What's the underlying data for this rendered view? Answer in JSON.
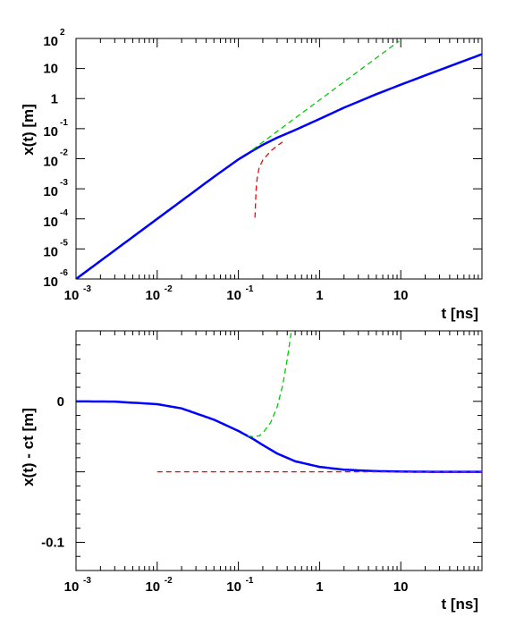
{
  "chart_data": [
    {
      "type": "line",
      "title": "",
      "xlabel": "t [ns]",
      "ylabel": "x(t)  [m]",
      "xscale": "log",
      "yscale": "log",
      "xlim": [
        0.001,
        100
      ],
      "ylim": [
        1e-06,
        100
      ],
      "grid": false,
      "legend": "none",
      "x_ticks": [
        {
          "base": "10",
          "exp": "-3"
        },
        {
          "base": "10",
          "exp": "-2"
        },
        {
          "base": "10",
          "exp": "-1"
        },
        {
          "base": "1",
          "exp": ""
        },
        {
          "base": "10",
          "exp": ""
        }
      ],
      "y_ticks": [
        {
          "base": "10",
          "exp": "2"
        },
        {
          "base": "10",
          "exp": ""
        },
        {
          "base": "1",
          "exp": ""
        },
        {
          "base": "10",
          "exp": "-1"
        },
        {
          "base": "10",
          "exp": "-2"
        },
        {
          "base": "10",
          "exp": "-3"
        },
        {
          "base": "10",
          "exp": "-4"
        },
        {
          "base": "10",
          "exp": "-5"
        },
        {
          "base": "10",
          "exp": "-6"
        }
      ],
      "series": [
        {
          "color": "#0000ff",
          "style": "solid",
          "x": [
            0.001,
            0.002,
            0.005,
            0.01,
            0.02,
            0.05,
            0.1,
            0.15,
            0.2,
            0.3,
            0.5,
            1,
            2,
            5,
            10,
            20,
            50,
            100
          ],
          "y": [
            1e-06,
            4e-06,
            2.5e-05,
            0.0001,
            0.0004,
            0.0025,
            0.0095,
            0.0185,
            0.029,
            0.05,
            0.09,
            0.21,
            0.5,
            1.4,
            2.9,
            5.9,
            14.9,
            29.9
          ]
        },
        {
          "color": "#00cc00",
          "style": "dashed",
          "x": [
            0.15,
            0.2,
            0.3,
            0.5,
            1,
            2,
            5,
            9.5
          ],
          "y": [
            0.02,
            0.036,
            0.081,
            0.225,
            0.9,
            3.6,
            22.5,
            81
          ]
        },
        {
          "color": "#ff0000",
          "style": "dashed",
          "x": [
            0.16,
            0.165,
            0.17,
            0.18,
            0.2,
            0.25,
            0.3,
            0.35
          ],
          "y": [
            0.00011,
            0.0009,
            0.0022,
            0.005,
            0.009,
            0.018,
            0.027,
            0.036
          ]
        }
      ]
    },
    {
      "type": "line",
      "title": "",
      "xlabel": "t [ns]",
      "ylabel": "x(t) - ct  [m]",
      "xscale": "log",
      "xlim": [
        0.001,
        100
      ],
      "ylim": [
        -0.12,
        0.05
      ],
      "grid": false,
      "legend": "none",
      "x_ticks": [
        {
          "base": "10",
          "exp": "-3"
        },
        {
          "base": "10",
          "exp": "-2"
        },
        {
          "base": "10",
          "exp": "-1"
        },
        {
          "base": "1",
          "exp": ""
        },
        {
          "base": "10",
          "exp": ""
        }
      ],
      "y_ticks": [
        {
          "value": 0,
          "label": "0"
        },
        {
          "value": -0.1,
          "label": "-0.1"
        }
      ],
      "series": [
        {
          "color": "#0000ff",
          "style": "solid",
          "x": [
            0.001,
            0.003,
            0.01,
            0.02,
            0.05,
            0.1,
            0.15,
            0.2,
            0.3,
            0.5,
            1,
            2,
            5,
            10,
            30,
            100
          ],
          "y": [
            0,
            -0.0002,
            -0.002,
            -0.005,
            -0.013,
            -0.021,
            -0.0265,
            -0.031,
            -0.037,
            -0.0425,
            -0.0465,
            -0.0485,
            -0.0495,
            -0.0498,
            -0.05,
            -0.05
          ]
        },
        {
          "color": "#00cc00",
          "style": "dashed",
          "x": [
            0.13,
            0.15,
            0.18,
            0.2,
            0.25,
            0.3,
            0.35,
            0.4,
            0.45
          ],
          "y": [
            -0.0245,
            -0.025,
            -0.0245,
            -0.0225,
            -0.015,
            -0.004,
            0.011,
            0.03,
            0.05
          ]
        },
        {
          "color": "#ff0000",
          "style": "dashed",
          "x": [
            0.01,
            0.1,
            1,
            10,
            100
          ],
          "y": [
            -0.05,
            -0.05,
            -0.05,
            -0.05,
            -0.05
          ]
        }
      ]
    }
  ]
}
